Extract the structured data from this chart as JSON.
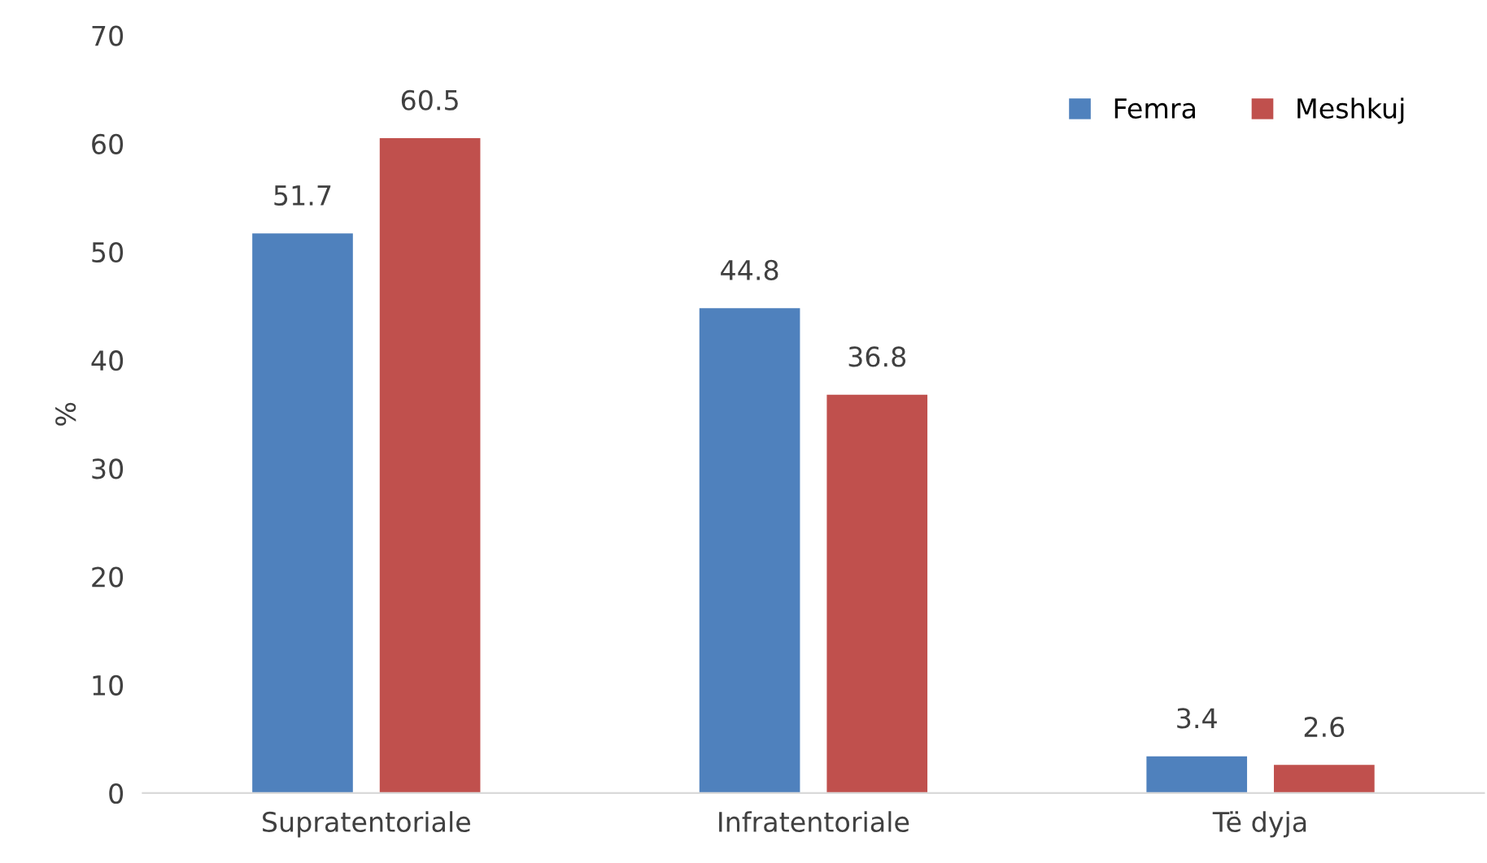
{
  "chart_data": {
    "type": "bar",
    "ylabel": "%",
    "categories": [
      "Supratentoriale",
      "Infratentoriale",
      "Të dyja"
    ],
    "series": [
      {
        "name": "Femra",
        "color": "#4f81bd",
        "values": [
          51.7,
          44.8,
          3.4
        ]
      },
      {
        "name": "Meshkuj",
        "color": "#c0504d",
        "values": [
          60.5,
          36.8,
          2.6
        ]
      }
    ],
    "ylim": [
      0,
      70
    ],
    "yticks": [
      0,
      10,
      20,
      30,
      40,
      50,
      60,
      70
    ],
    "grid": false,
    "legend": "top right",
    "data_labels": true
  }
}
